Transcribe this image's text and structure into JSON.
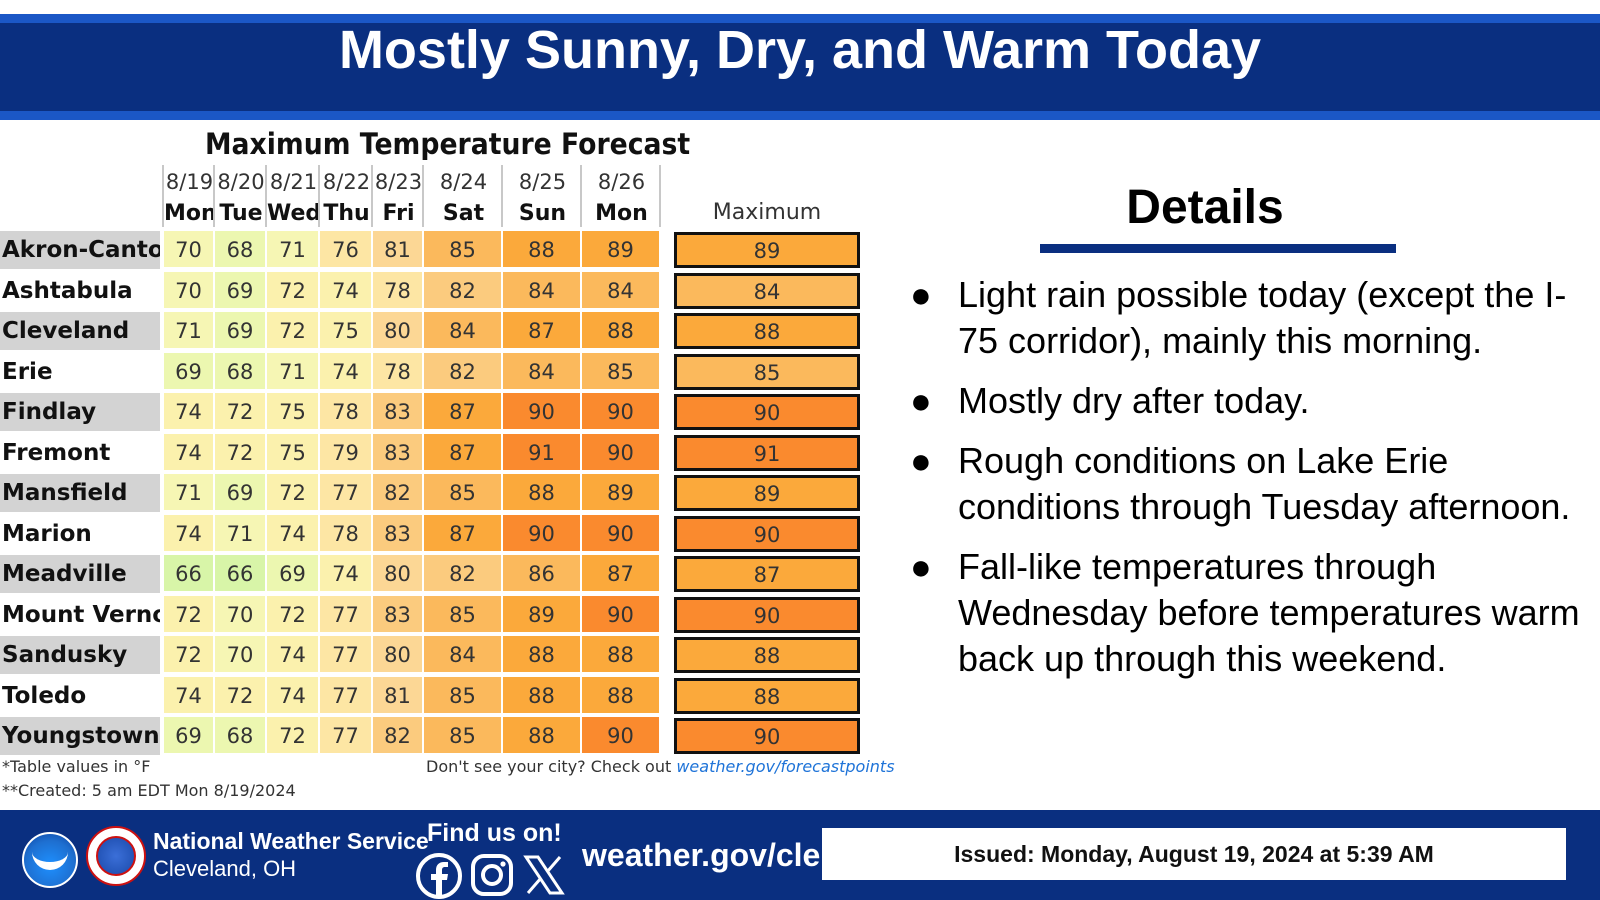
{
  "header": {
    "title": "Mostly Sunny, Dry, and Warm Today"
  },
  "table": {
    "title": "Maximum Temperature Forecast",
    "dates": [
      "8/19",
      "8/20",
      "8/21",
      "8/22",
      "8/23",
      "8/24",
      "8/25",
      "8/26"
    ],
    "days": [
      "Mon",
      "Tue",
      "Wed",
      "Thu",
      "Fri",
      "Sat",
      "Sun",
      "Mon"
    ],
    "max_label": "Maximum",
    "rows": [
      {
        "city": "Akron-Canton",
        "temps": [
          70,
          68,
          71,
          76,
          81,
          85,
          88,
          89
        ],
        "max": 89
      },
      {
        "city": "Ashtabula",
        "temps": [
          70,
          69,
          72,
          74,
          78,
          82,
          84,
          84
        ],
        "max": 84
      },
      {
        "city": "Cleveland",
        "temps": [
          71,
          69,
          72,
          75,
          80,
          84,
          87,
          88
        ],
        "max": 88
      },
      {
        "city": "Erie",
        "temps": [
          69,
          68,
          71,
          74,
          78,
          82,
          84,
          85
        ],
        "max": 85
      },
      {
        "city": "Findlay",
        "temps": [
          74,
          72,
          75,
          78,
          83,
          87,
          90,
          90
        ],
        "max": 90
      },
      {
        "city": "Fremont",
        "temps": [
          74,
          72,
          75,
          79,
          83,
          87,
          91,
          90
        ],
        "max": 91
      },
      {
        "city": "Mansfield",
        "temps": [
          71,
          69,
          72,
          77,
          82,
          85,
          88,
          89
        ],
        "max": 89
      },
      {
        "city": "Marion",
        "temps": [
          74,
          71,
          74,
          78,
          83,
          87,
          90,
          90
        ],
        "max": 90
      },
      {
        "city": "Meadville",
        "temps": [
          66,
          66,
          69,
          74,
          80,
          82,
          86,
          87
        ],
        "max": 87
      },
      {
        "city": "Mount Vernon",
        "temps": [
          72,
          70,
          72,
          77,
          83,
          85,
          89,
          90
        ],
        "max": 90
      },
      {
        "city": "Sandusky",
        "temps": [
          72,
          70,
          74,
          77,
          80,
          84,
          88,
          88
        ],
        "max": 88
      },
      {
        "city": "Toledo",
        "temps": [
          74,
          72,
          74,
          77,
          81,
          85,
          88,
          88
        ],
        "max": 88
      },
      {
        "city": "Youngstown",
        "temps": [
          69,
          68,
          72,
          77,
          82,
          85,
          88,
          90
        ],
        "max": 90
      }
    ],
    "note_units": "*Table values in °F",
    "note_created": "**Created: 5 am EDT Mon 8/19/2024",
    "city_prompt": "Don't see your city? Check out",
    "city_link": "weather.gov/forecastpoints"
  },
  "details": {
    "title": "Details",
    "bullets": [
      "Light rain possible today (except the I-75 corridor), mainly this morning.",
      "Mostly dry after today.",
      "Rough conditions on Lake Erie conditions through Tuesday afternoon.",
      "Fall-like temperatures through Wednesday before temperatures warm back up through this weekend."
    ]
  },
  "footer": {
    "org_name": "National Weather Service",
    "org_location": "Cleveland, OH",
    "find_us": "Find us on!",
    "social_icons": [
      "facebook-icon",
      "instagram-icon",
      "x-icon"
    ],
    "url": "weather.gov/cle",
    "issued": "Issued: Monday, August 19, 2024 at 5:39 AM"
  },
  "colors": {
    "header_bg": "#0a2f80",
    "header_border": "#1b57c6",
    "link": "#1e73d8",
    "temp_scale": {
      "66": "#d8f5a8",
      "68": "#ecf7b0",
      "70": "#f6f6b4",
      "72": "#fbf1ad",
      "76": "#fde6a4",
      "80": "#fcd795",
      "82": "#fbcb7e",
      "84": "#fbb95c",
      "87": "#fba93b",
      "90": "#fa8a2e"
    }
  }
}
